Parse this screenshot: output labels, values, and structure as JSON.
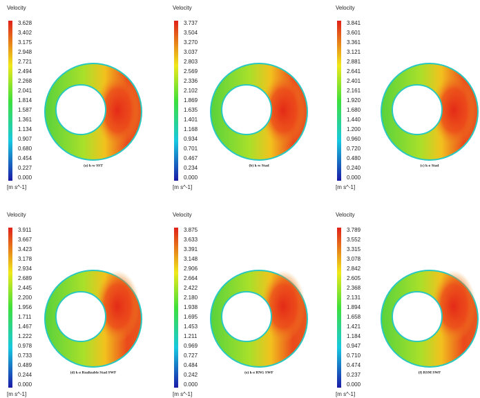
{
  "panels": [
    {
      "legend_title": "Velocity",
      "ticks": [
        "3.628",
        "3.402",
        "3.175",
        "2.948",
        "2.721",
        "2.494",
        "2.268",
        "2.041",
        "1.814",
        "1.587",
        "1.361",
        "1.134",
        "0.907",
        "0.680",
        "0.454",
        "0.227",
        "0.000"
      ],
      "unit": "[m s^-1]",
      "caption": "(a) k-w SST"
    },
    {
      "legend_title": "Velocity",
      "ticks": [
        "3.737",
        "3.504",
        "3.270",
        "3.037",
        "2.803",
        "2.569",
        "2.336",
        "2.102",
        "1.869",
        "1.635",
        "1.401",
        "1.168",
        "0.934",
        "0.701",
        "0.467",
        "0.234",
        "0.000"
      ],
      "unit": "[m s^-1]",
      "caption": "(b) k-w Stad"
    },
    {
      "legend_title": "Velocity",
      "ticks": [
        "3.841",
        "3.601",
        "3.361",
        "3.121",
        "2.881",
        "2.641",
        "2.401",
        "2.161",
        "1.920",
        "1.680",
        "1.440",
        "1.200",
        "0.960",
        "0.720",
        "0.480",
        "0.240",
        "0.000"
      ],
      "unit": "[m s^-1]",
      "caption": "(c) k-e Stad"
    },
    {
      "legend_title": "Velocity",
      "ticks": [
        "3.911",
        "3.667",
        "3.423",
        "3.178",
        "2.934",
        "2.689",
        "2.445",
        "2.200",
        "1.956",
        "1.711",
        "1.467",
        "1.222",
        "0.978",
        "0.733",
        "0.489",
        "0.244",
        "0.000"
      ],
      "unit": "[m s^-1]",
      "caption": "(d) k-e Realizable Stad SWF"
    },
    {
      "legend_title": "Velocity",
      "ticks": [
        "3.875",
        "3.633",
        "3.391",
        "3.148",
        "2.906",
        "2.664",
        "2.422",
        "2.180",
        "1.938",
        "1.695",
        "1.453",
        "1.211",
        "0.969",
        "0.727",
        "0.484",
        "0.242",
        "0.000"
      ],
      "unit": "[m s^-1]",
      "caption": "(e) k-e RNG SWF"
    },
    {
      "legend_title": "Velocity",
      "ticks": [
        "3.789",
        "3.552",
        "3.315",
        "3.078",
        "2.842",
        "2.605",
        "2.368",
        "2.131",
        "1.894",
        "1.658",
        "1.421",
        "1.184",
        "0.947",
        "0.710",
        "0.474",
        "0.237",
        "0.000"
      ],
      "unit": "[m s^-1]",
      "caption": "(f) RSM SWF"
    }
  ]
}
